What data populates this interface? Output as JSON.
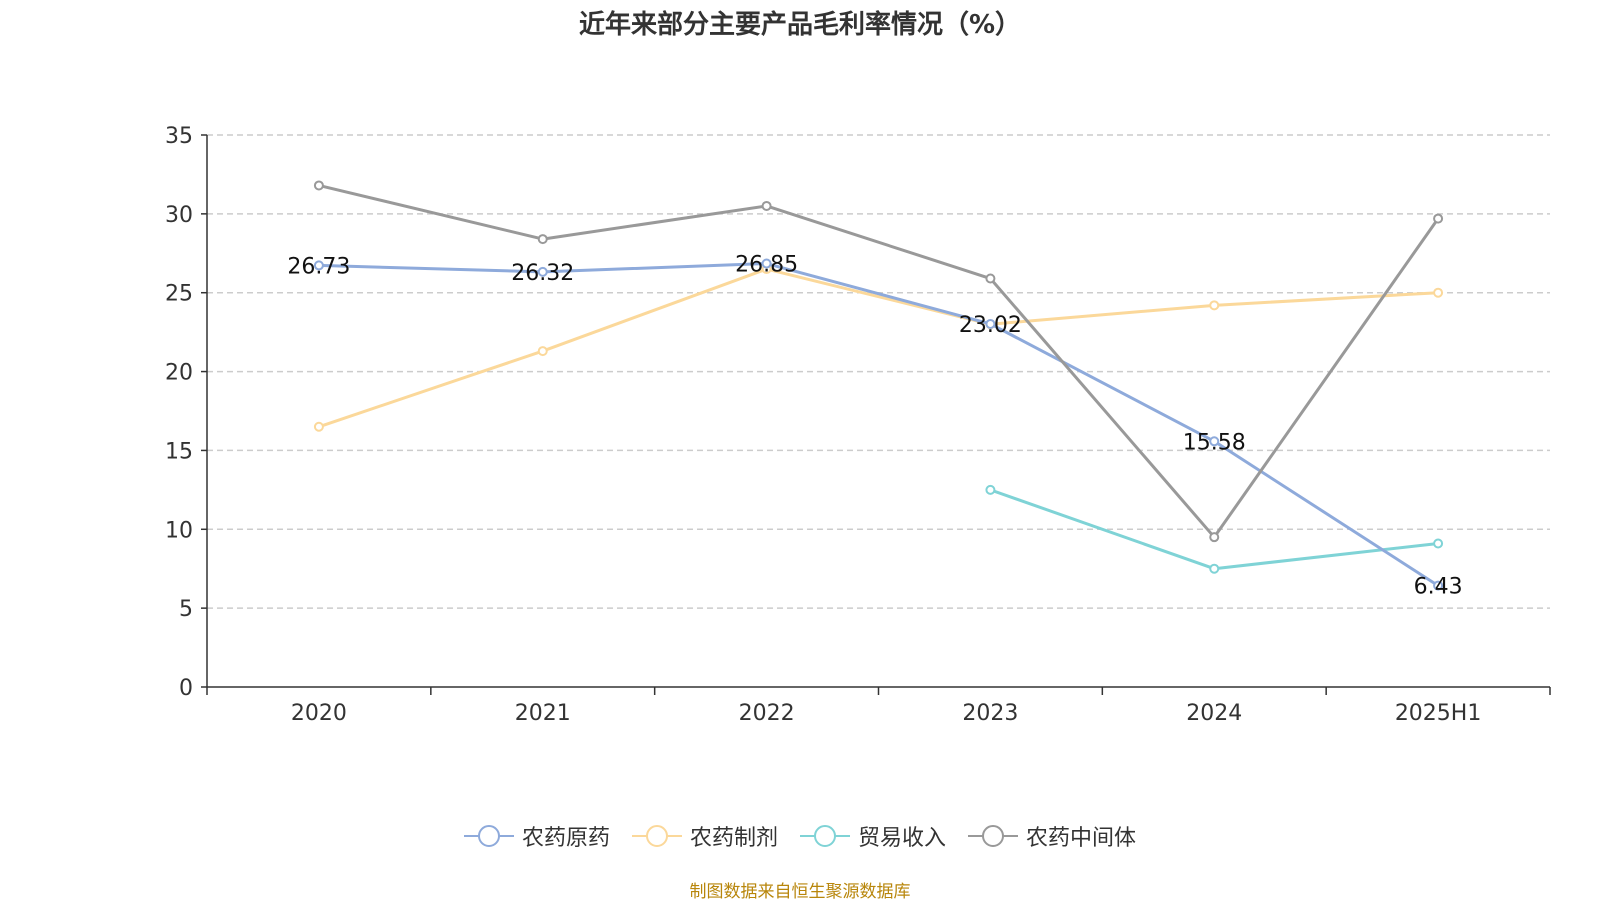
{
  "title": "近年来部分主要产品毛利率情况（%）",
  "source": "制图数据来自恒生聚源数据库",
  "chart_data": {
    "type": "line",
    "title": "近年来部分主要产品毛利率情况（%）",
    "categories": [
      "2020",
      "2021",
      "2022",
      "2023",
      "2024",
      "2025H1"
    ],
    "ylim": [
      0,
      35
    ],
    "yticks": [
      0,
      5,
      10,
      15,
      20,
      25,
      30,
      35
    ],
    "grid": true,
    "legend_position": "bottom",
    "series": [
      {
        "name": "农药原药",
        "color": "#8eaadb",
        "values": [
          26.73,
          26.32,
          26.85,
          23.02,
          15.58,
          6.43
        ],
        "labels": [
          "26.73",
          "26.32",
          "26.85",
          "23.02",
          "15.58",
          "6.43"
        ]
      },
      {
        "name": "农药制剂",
        "color": "#fbd89a",
        "values": [
          16.5,
          21.3,
          26.5,
          23.0,
          24.2,
          25.0
        ]
      },
      {
        "name": "贸易收入",
        "color": "#7fd3d6",
        "values": [
          null,
          null,
          null,
          12.5,
          7.5,
          9.1
        ]
      },
      {
        "name": "农药中间体",
        "color": "#999999",
        "values": [
          31.8,
          28.4,
          30.5,
          25.9,
          9.5,
          29.7
        ]
      }
    ]
  }
}
